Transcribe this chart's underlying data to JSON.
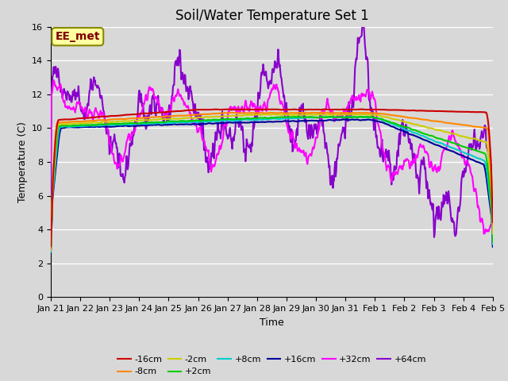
{
  "title": "Soil/Water Temperature Set 1",
  "xlabel": "Time",
  "ylabel": "Temperature (C)",
  "ylim": [
    0,
    16
  ],
  "yticks": [
    0,
    2,
    4,
    6,
    8,
    10,
    12,
    14,
    16
  ],
  "annotation_text": "EE_met",
  "annotation_color": "#800000",
  "annotation_bg": "#ffffa0",
  "annotation_edge": "#888800",
  "bg_color": "#d8d8d8",
  "grid_color": "#ffffff",
  "series": {
    "-16cm": {
      "color": "#cc0000",
      "lw": 1.5
    },
    "-8cm": {
      "color": "#ff8800",
      "lw": 1.5
    },
    "-2cm": {
      "color": "#cccc00",
      "lw": 1.5
    },
    "+2cm": {
      "color": "#00cc00",
      "lw": 1.5
    },
    "+8cm": {
      "color": "#00cccc",
      "lw": 1.5
    },
    "+16cm": {
      "color": "#000099",
      "lw": 1.5
    },
    "+32cm": {
      "color": "#ff00ff",
      "lw": 1.5
    },
    "+64cm": {
      "color": "#8800cc",
      "lw": 1.5
    }
  },
  "xtick_labels": [
    "Jan 21",
    "Jan 22",
    "Jan 23",
    "Jan 24",
    "Jan 25",
    "Jan 26",
    "Jan 27",
    "Jan 28",
    "Jan 29",
    "Jan 30",
    "Jan 31",
    "Feb 1",
    "Feb 2",
    "Feb 3",
    "Feb 4",
    "Feb 5"
  ],
  "title_fontsize": 12,
  "axis_fontsize": 9,
  "tick_fontsize": 8,
  "legend_fontsize": 8,
  "figsize": [
    6.4,
    4.8
  ],
  "dpi": 100
}
